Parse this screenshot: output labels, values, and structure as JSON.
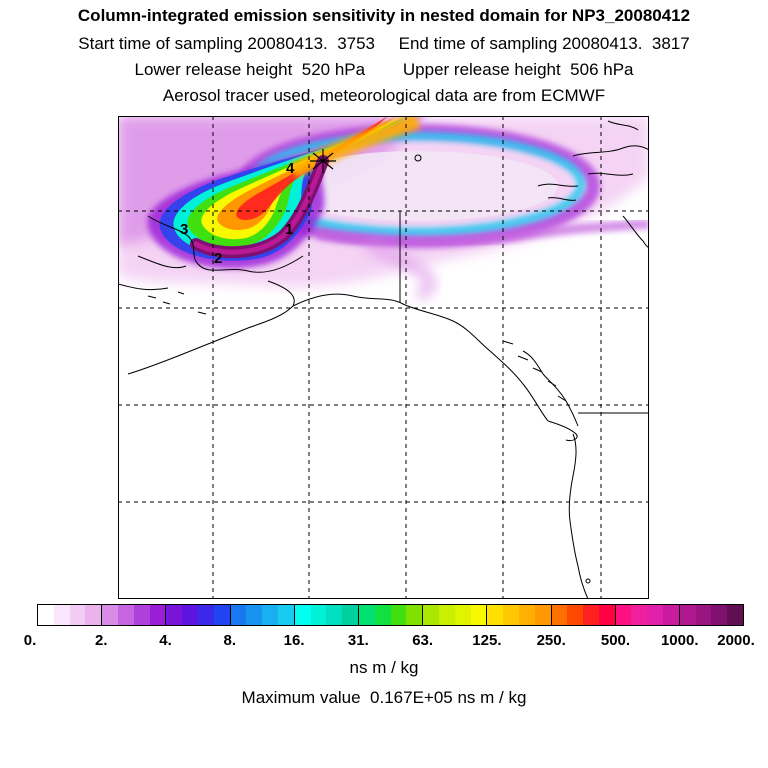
{
  "titles": {
    "line1": "Column-integrated emission sensitivity in nested domain for NP3_20080412",
    "line2": "Start time of sampling 20080413.  3753     End time of sampling 20080413.  3817",
    "line3": "Lower release height  520 hPa        Upper release height  506 hPa",
    "line4": "Aerosol tracer used, meteorological data are from ECMWF"
  },
  "map": {
    "markers": [
      "1",
      "2",
      "3",
      "4"
    ],
    "grid": "dashed"
  },
  "colorbar": {
    "tick_labels": [
      "0.",
      "2.",
      "4.",
      "8.",
      "16.",
      "31.",
      "63.",
      "125.",
      "250.",
      "500.",
      "1000.",
      "2000."
    ],
    "segments": [
      [
        "#ffffff",
        "#fbe6fb",
        "#f3ccf3",
        "#ebb3eb"
      ],
      [
        "#d98ce6",
        "#c566e0",
        "#b040dc",
        "#9a1ed8"
      ],
      [
        "#7a14d8",
        "#5e14e0",
        "#3c28e8",
        "#2044f0"
      ],
      [
        "#1878f0",
        "#1894f0",
        "#18b0f0",
        "#18ccf0"
      ],
      [
        "#00fff0",
        "#00f0d8",
        "#00e0c0",
        "#00d0a0"
      ],
      [
        "#00e070",
        "#10e040",
        "#40e010",
        "#80e000"
      ],
      [
        "#a8e800",
        "#c8f000",
        "#e0f400",
        "#f8f800"
      ],
      [
        "#ffe000",
        "#ffc800",
        "#ffb000",
        "#ff9800"
      ],
      [
        "#ff7000",
        "#ff4800",
        "#ff2020",
        "#ff0040"
      ],
      [
        "#ff1080",
        "#f0209c",
        "#e020a8",
        "#c81ca0"
      ],
      [
        "#b01890",
        "#981480",
        "#801070",
        "#601050"
      ]
    ],
    "units": "ns m / kg"
  },
  "maximum": "Maximum value  0.167E+05 ns m / kg"
}
